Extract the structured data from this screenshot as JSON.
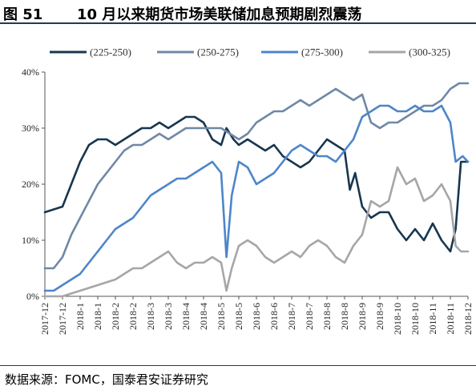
{
  "figure": {
    "number": "图 51",
    "title": "10 月以来期货市场美联储加息预期剧烈震荡",
    "source": "数据来源：FOMC，国泰君安证券研究"
  },
  "chart_data": {
    "type": "line",
    "ylim": [
      0,
      40
    ],
    "yticks": [
      "0%",
      "10%",
      "20%",
      "30%",
      "40%"
    ],
    "ytick_values": [
      0,
      10,
      20,
      30,
      40
    ],
    "xlabels": [
      "2017-12",
      "2017-12",
      "2018-1",
      "2018-1",
      "2018-2",
      "2018-2",
      "2018-3",
      "2018-3",
      "2018-4",
      "2018-4",
      "2018-5",
      "2018-5",
      "2018-6",
      "2018-6",
      "2018-7",
      "2018-7",
      "2018-8",
      "2018-8",
      "2018-9",
      "2018-9",
      "2018-10",
      "2018-10",
      "2018-11",
      "2018-11",
      "2018-12"
    ],
    "legend_position": "top",
    "grid": false,
    "series": [
      {
        "name": "(225-250)",
        "color": "#17364f",
        "width": 2.6,
        "values": [
          [
            0,
            15
          ],
          [
            1,
            16
          ],
          [
            1.5,
            20
          ],
          [
            2,
            24
          ],
          [
            2.5,
            27
          ],
          [
            3,
            28
          ],
          [
            3.5,
            28
          ],
          [
            4,
            27
          ],
          [
            4.5,
            28
          ],
          [
            5,
            29
          ],
          [
            5.5,
            30
          ],
          [
            6,
            30
          ],
          [
            6.5,
            31
          ],
          [
            7,
            30
          ],
          [
            7.5,
            31
          ],
          [
            8,
            32
          ],
          [
            8.5,
            32
          ],
          [
            9,
            31
          ],
          [
            9.5,
            28
          ],
          [
            10,
            27
          ],
          [
            10.3,
            30
          ],
          [
            10.7,
            28
          ],
          [
            11,
            27
          ],
          [
            11.5,
            28
          ],
          [
            12,
            27
          ],
          [
            12.5,
            26
          ],
          [
            13,
            27
          ],
          [
            13.5,
            25
          ],
          [
            14,
            24
          ],
          [
            14.5,
            23
          ],
          [
            15,
            24
          ],
          [
            15.5,
            26
          ],
          [
            16,
            28
          ],
          [
            16.5,
            27
          ],
          [
            17,
            26
          ],
          [
            17.3,
            19
          ],
          [
            17.6,
            22
          ],
          [
            18,
            16
          ],
          [
            18.5,
            14
          ],
          [
            19,
            15
          ],
          [
            19.5,
            15
          ],
          [
            20,
            12
          ],
          [
            20.5,
            10
          ],
          [
            21,
            12
          ],
          [
            21.5,
            10
          ],
          [
            22,
            13
          ],
          [
            22.5,
            10
          ],
          [
            23,
            8
          ],
          [
            23.3,
            12
          ],
          [
            23.6,
            24
          ],
          [
            24,
            24
          ]
        ]
      },
      {
        "name": "(250-275)",
        "color": "#6f88a6",
        "width": 2.6,
        "values": [
          [
            0,
            5
          ],
          [
            0.5,
            5
          ],
          [
            1,
            7
          ],
          [
            1.5,
            11
          ],
          [
            2,
            14
          ],
          [
            2.5,
            17
          ],
          [
            3,
            20
          ],
          [
            3.5,
            22
          ],
          [
            4,
            24
          ],
          [
            4.5,
            26
          ],
          [
            5,
            27
          ],
          [
            5.5,
            27
          ],
          [
            6,
            28
          ],
          [
            6.5,
            29
          ],
          [
            7,
            28
          ],
          [
            7.5,
            29
          ],
          [
            8,
            30
          ],
          [
            8.5,
            30
          ],
          [
            9,
            30
          ],
          [
            9.5,
            30
          ],
          [
            10,
            30
          ],
          [
            10.5,
            29
          ],
          [
            11,
            28
          ],
          [
            11.5,
            29
          ],
          [
            12,
            31
          ],
          [
            12.5,
            32
          ],
          [
            13,
            33
          ],
          [
            13.5,
            33
          ],
          [
            14,
            34
          ],
          [
            14.5,
            35
          ],
          [
            15,
            34
          ],
          [
            15.5,
            35
          ],
          [
            16,
            36
          ],
          [
            16.5,
            37
          ],
          [
            17,
            36
          ],
          [
            17.5,
            35
          ],
          [
            18,
            36
          ],
          [
            18.5,
            31
          ],
          [
            19,
            30
          ],
          [
            19.5,
            31
          ],
          [
            20,
            31
          ],
          [
            20.5,
            32
          ],
          [
            21,
            33
          ],
          [
            21.5,
            34
          ],
          [
            22,
            34
          ],
          [
            22.5,
            35
          ],
          [
            23,
            37
          ],
          [
            23.5,
            38
          ],
          [
            24,
            38
          ]
        ]
      },
      {
        "name": "(275-300)",
        "color": "#4d86c9",
        "width": 2.6,
        "values": [
          [
            0,
            1
          ],
          [
            0.5,
            1
          ],
          [
            1,
            2
          ],
          [
            1.5,
            3
          ],
          [
            2,
            4
          ],
          [
            2.5,
            6
          ],
          [
            3,
            8
          ],
          [
            3.5,
            10
          ],
          [
            4,
            12
          ],
          [
            4.5,
            13
          ],
          [
            5,
            14
          ],
          [
            5.5,
            16
          ],
          [
            6,
            18
          ],
          [
            6.5,
            19
          ],
          [
            7,
            20
          ],
          [
            7.5,
            21
          ],
          [
            8,
            21
          ],
          [
            8.5,
            22
          ],
          [
            9,
            23
          ],
          [
            9.5,
            24
          ],
          [
            10,
            22
          ],
          [
            10.3,
            7
          ],
          [
            10.6,
            18
          ],
          [
            11,
            24
          ],
          [
            11.5,
            23
          ],
          [
            12,
            20
          ],
          [
            12.5,
            21
          ],
          [
            13,
            22
          ],
          [
            13.5,
            24
          ],
          [
            14,
            26
          ],
          [
            14.5,
            27
          ],
          [
            15,
            26
          ],
          [
            15.5,
            25
          ],
          [
            16,
            25
          ],
          [
            16.5,
            24
          ],
          [
            17,
            26
          ],
          [
            17.5,
            28
          ],
          [
            18,
            32
          ],
          [
            18.5,
            33
          ],
          [
            19,
            34
          ],
          [
            19.5,
            34
          ],
          [
            20,
            33
          ],
          [
            20.5,
            33
          ],
          [
            21,
            34
          ],
          [
            21.5,
            33
          ],
          [
            22,
            33
          ],
          [
            22.5,
            34
          ],
          [
            23,
            31
          ],
          [
            23.3,
            24
          ],
          [
            23.7,
            25
          ],
          [
            24,
            24
          ]
        ]
      },
      {
        "name": "(300-325)",
        "color": "#a6a6a6",
        "width": 2.6,
        "values": [
          [
            0,
            0
          ],
          [
            1,
            0
          ],
          [
            2,
            1
          ],
          [
            3,
            2
          ],
          [
            4,
            3
          ],
          [
            4.5,
            4
          ],
          [
            5,
            5
          ],
          [
            5.5,
            5
          ],
          [
            6,
            6
          ],
          [
            6.5,
            7
          ],
          [
            7,
            8
          ],
          [
            7.5,
            6
          ],
          [
            8,
            5
          ],
          [
            8.5,
            6
          ],
          [
            9,
            6
          ],
          [
            9.5,
            7
          ],
          [
            10,
            6
          ],
          [
            10.3,
            1
          ],
          [
            10.6,
            5
          ],
          [
            11,
            9
          ],
          [
            11.5,
            10
          ],
          [
            12,
            9
          ],
          [
            12.5,
            7
          ],
          [
            13,
            6
          ],
          [
            13.5,
            7
          ],
          [
            14,
            8
          ],
          [
            14.5,
            7
          ],
          [
            15,
            9
          ],
          [
            15.5,
            10
          ],
          [
            16,
            9
          ],
          [
            16.5,
            7
          ],
          [
            17,
            6
          ],
          [
            17.5,
            9
          ],
          [
            18,
            11
          ],
          [
            18.5,
            17
          ],
          [
            19,
            16
          ],
          [
            19.5,
            17
          ],
          [
            20,
            23
          ],
          [
            20.5,
            20
          ],
          [
            21,
            21
          ],
          [
            21.5,
            17
          ],
          [
            22,
            18
          ],
          [
            22.5,
            20
          ],
          [
            23,
            17
          ],
          [
            23.3,
            9
          ],
          [
            23.6,
            8
          ],
          [
            24,
            8
          ]
        ]
      }
    ]
  }
}
